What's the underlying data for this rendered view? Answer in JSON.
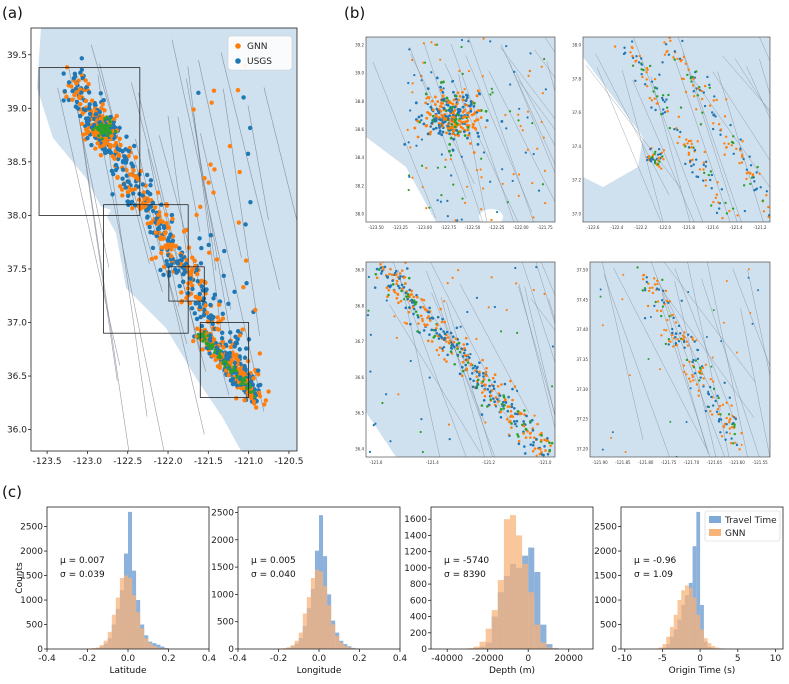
{
  "panel_labels": [
    "(a)",
    "(b)",
    "(c)"
  ],
  "colors": {
    "gnn": "#ff7f0e",
    "usgs": "#1f77b4",
    "stations": "#2ca02c",
    "map_water": "#cfe0ee",
    "land": "#ffffff",
    "fault": "#6a7380",
    "travel_bar": "#7fa9d6",
    "gnn_bar": "#f8b37a"
  },
  "map": {
    "legend": [
      "GNN",
      "USGS"
    ],
    "xticks": [
      "-123.5",
      "-123.0",
      "-122.5",
      "-122.0",
      "-121.5",
      "-121.0",
      "-120.5"
    ],
    "yticks": [
      "36.0",
      "36.5",
      "37.0",
      "37.5",
      "38.0",
      "38.5",
      "39.0",
      "39.5"
    ],
    "xlim": [
      -123.7,
      -120.4
    ],
    "ylim": [
      35.8,
      39.75
    ]
  },
  "insets": [
    {
      "xticks": [
        "-123.50",
        "-123.25",
        "-123.00",
        "-122.75",
        "-122.50",
        "-122.25",
        "-122.00",
        "-121.75"
      ],
      "yticks": [
        "38.0",
        "38.2",
        "38.4",
        "38.6",
        "38.8",
        "39.0",
        "39.2"
      ]
    },
    {
      "xticks": [
        "-122.6",
        "-122.4",
        "-122.2",
        "-122.0",
        "-121.8",
        "-121.6",
        "-121.4",
        "-121.2"
      ],
      "yticks": [
        "37.0",
        "37.2",
        "37.4",
        "37.6",
        "37.8",
        "38.0"
      ]
    },
    {
      "xticks": [
        "-121.6",
        "-121.4",
        "-121.2",
        "-121.0"
      ],
      "yticks": [
        "36.4",
        "36.5",
        "36.6",
        "36.7",
        "36.8",
        "36.9"
      ]
    },
    {
      "xticks": [
        "-121.90",
        "-121.85",
        "-121.80",
        "-121.75",
        "-121.70",
        "-121.65",
        "-121.60",
        "-121.55"
      ],
      "yticks": [
        "37.20",
        "37.25",
        "37.30",
        "37.35",
        "37.40",
        "37.45",
        "37.50"
      ]
    }
  ],
  "chart_data": [
    {
      "type": "bar",
      "xlabel": "Latitude",
      "ylabel": "Counts",
      "xlim": [
        -0.4,
        0.4
      ],
      "ylim": [
        0,
        2900
      ],
      "xticks": [
        "-0.4",
        "-0.2",
        "0.0",
        "0.2",
        "0.4"
      ],
      "yticks": [
        "0",
        "500",
        "1000",
        "1500",
        "2000",
        "2500"
      ],
      "stat_mu": "μ =  0.007",
      "stat_sigma": "σ =  0.039",
      "bin_edges": [
        -0.2,
        -0.18,
        -0.16,
        -0.14,
        -0.12,
        -0.1,
        -0.08,
        -0.06,
        -0.04,
        -0.02,
        0,
        0.02,
        0.04,
        0.06,
        0.08,
        0.1,
        0.12,
        0.14,
        0.16,
        0.18,
        0.2
      ],
      "series": [
        {
          "name": "Travel Time",
          "values": [
            5,
            10,
            20,
            50,
            110,
            220,
            500,
            820,
            1200,
            1950,
            2800,
            1600,
            1000,
            500,
            280,
            150,
            120,
            90,
            50,
            20
          ]
        },
        {
          "name": "GNN",
          "values": [
            10,
            20,
            30,
            80,
            170,
            350,
            700,
            1050,
            1450,
            1500,
            1450,
            1100,
            750,
            420,
            220,
            120,
            60,
            30,
            15,
            8
          ]
        }
      ]
    },
    {
      "type": "bar",
      "xlabel": "Longitude",
      "xlim": [
        -0.4,
        0.4
      ],
      "ylim": [
        0,
        2600
      ],
      "xticks": [
        "-0.4",
        "-0.2",
        "0.0",
        "0.2",
        "0.4"
      ],
      "yticks": [
        "0",
        "500",
        "1000",
        "1500",
        "2000",
        "2500"
      ],
      "stat_mu": "μ =  0.005",
      "stat_sigma": "σ =  0.040",
      "bin_edges": [
        -0.2,
        -0.18,
        -0.16,
        -0.14,
        -0.12,
        -0.1,
        -0.08,
        -0.06,
        -0.04,
        -0.02,
        0,
        0.02,
        0.04,
        0.06,
        0.08,
        0.1,
        0.12,
        0.14,
        0.16,
        0.18,
        0.2
      ],
      "series": [
        {
          "name": "Travel Time",
          "values": [
            5,
            10,
            20,
            50,
            100,
            200,
            420,
            750,
            1100,
            1800,
            2450,
            1700,
            1000,
            520,
            300,
            150,
            90,
            50,
            20,
            10
          ]
        },
        {
          "name": "GNN",
          "values": [
            10,
            15,
            30,
            70,
            150,
            300,
            650,
            950,
            1300,
            1450,
            1420,
            1150,
            800,
            450,
            240,
            120,
            60,
            30,
            15,
            8
          ]
        }
      ]
    },
    {
      "type": "bar",
      "xlabel": "Depth (m)",
      "xlim": [
        -48000,
        32000
      ],
      "ylim": [
        0,
        1750
      ],
      "xticks": [
        "-40000",
        "-20000",
        "0",
        "20000"
      ],
      "yticks": [
        "0",
        "200",
        "400",
        "600",
        "800",
        "1000",
        "1200",
        "1400",
        "1600"
      ],
      "stat_mu": "μ =  -5740",
      "stat_sigma": "σ =  8390",
      "bin_edges": [
        -30000,
        -27000,
        -24000,
        -21000,
        -18000,
        -15000,
        -12000,
        -9000,
        -6000,
        -3000,
        0,
        3000,
        6000,
        9000,
        12000,
        15000
      ],
      "series": [
        {
          "name": "Travel Time",
          "values": [
            5,
            10,
            30,
            80,
            400,
            700,
            900,
            1050,
            1000,
            1150,
            1250,
            950,
            300,
            60,
            10
          ]
        },
        {
          "name": "GNN",
          "values": [
            10,
            30,
            90,
            250,
            480,
            850,
            1600,
            1650,
            1400,
            1050,
            700,
            300,
            80,
            20,
            5
          ]
        }
      ]
    },
    {
      "type": "bar",
      "xlabel": "Origin Time (s)",
      "xlim": [
        -10.5,
        11
      ],
      "ylim": [
        0,
        2900
      ],
      "xticks": [
        "-10",
        "-5",
        "0",
        "5",
        "10"
      ],
      "yticks": [
        "0",
        "500",
        "1000",
        "1500",
        "2000",
        "2500"
      ],
      "stat_mu": "μ =  -0.96",
      "stat_sigma": "σ =  1.09",
      "legend": [
        "Travel Time",
        "GNN"
      ],
      "bin_edges": [
        -6,
        -5.5,
        -5,
        -4.5,
        -4,
        -3.5,
        -3,
        -2.5,
        -2,
        -1.5,
        -1,
        -0.5,
        0,
        0.5,
        1,
        1.5,
        2,
        2.5,
        3,
        3.5,
        4
      ],
      "series": [
        {
          "name": "Travel Time",
          "values": [
            5,
            10,
            30,
            100,
            250,
            400,
            600,
            900,
            1100,
            1350,
            2100,
            2800,
            900,
            150,
            40,
            15,
            5,
            2,
            1,
            1
          ]
        },
        {
          "name": "GNN",
          "values": [
            10,
            30,
            100,
            250,
            450,
            700,
            1000,
            1200,
            1300,
            1250,
            1050,
            700,
            400,
            220,
            120,
            60,
            30,
            15,
            8,
            4
          ]
        }
      ]
    }
  ]
}
